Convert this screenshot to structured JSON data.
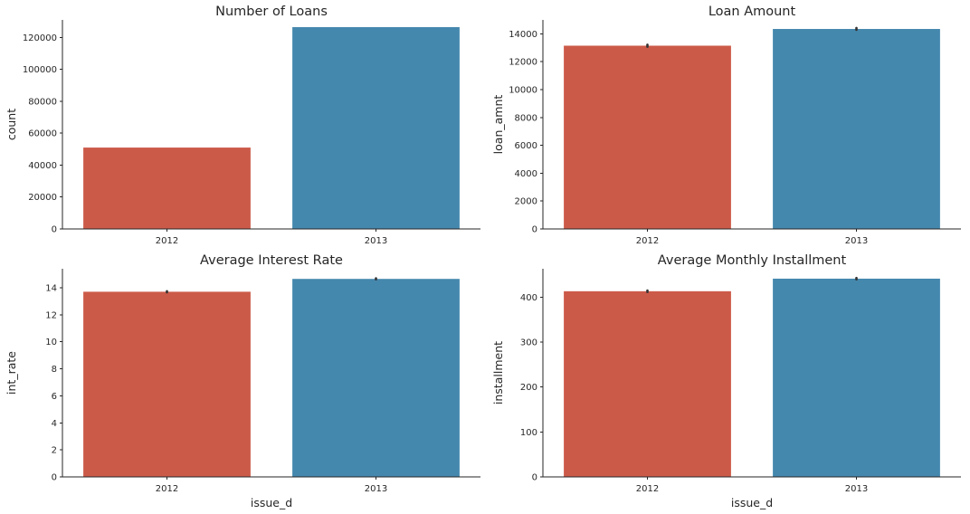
{
  "chart_data": [
    {
      "type": "bar",
      "title": "Number of Loans",
      "xlabel": "",
      "ylabel": "count",
      "categories": [
        "2012",
        "2013"
      ],
      "values": [
        51000,
        126500
      ],
      "errors": null,
      "ylim": [
        0,
        131000
      ],
      "yticks": [
        0,
        20000,
        40000,
        60000,
        80000,
        100000,
        120000
      ],
      "colors": [
        "#cc5a49",
        "#4588ae"
      ],
      "grid": false
    },
    {
      "type": "bar",
      "title": "Loan Amount",
      "xlabel": "",
      "ylabel": "loan_amnt",
      "categories": [
        "2012",
        "2013"
      ],
      "values": [
        13150,
        14350
      ],
      "errors": [
        [
          13080,
          13220
        ],
        [
          14290,
          14420
        ]
      ],
      "ylim": [
        0,
        15000
      ],
      "yticks": [
        0,
        2000,
        4000,
        6000,
        8000,
        10000,
        12000,
        14000
      ],
      "colors": [
        "#cc5a49",
        "#4588ae"
      ],
      "grid": false
    },
    {
      "type": "bar",
      "title": "Average Interest Rate",
      "xlabel": "issue_d",
      "ylabel": "int_rate",
      "categories": [
        "2012",
        "2013"
      ],
      "values": [
        13.7,
        14.65
      ],
      "errors": [
        [
          13.66,
          13.74
        ],
        [
          14.62,
          14.69
        ]
      ],
      "ylim": [
        0,
        15.4
      ],
      "yticks": [
        0,
        2,
        4,
        6,
        8,
        10,
        12,
        14
      ],
      "colors": [
        "#cc5a49",
        "#4588ae"
      ],
      "grid": false
    },
    {
      "type": "bar",
      "title": "Average Monthly Installment",
      "xlabel": "issue_d",
      "ylabel": "installment",
      "categories": [
        "2012",
        "2013"
      ],
      "values": [
        413,
        441
      ],
      "errors": [
        [
          411.5,
          414.5
        ],
        [
          439.5,
          442.5
        ]
      ],
      "ylim": [
        0,
        463
      ],
      "yticks": [
        0,
        100,
        200,
        300,
        400
      ],
      "colors": [
        "#cc5a49",
        "#4588ae"
      ],
      "grid": false
    }
  ]
}
